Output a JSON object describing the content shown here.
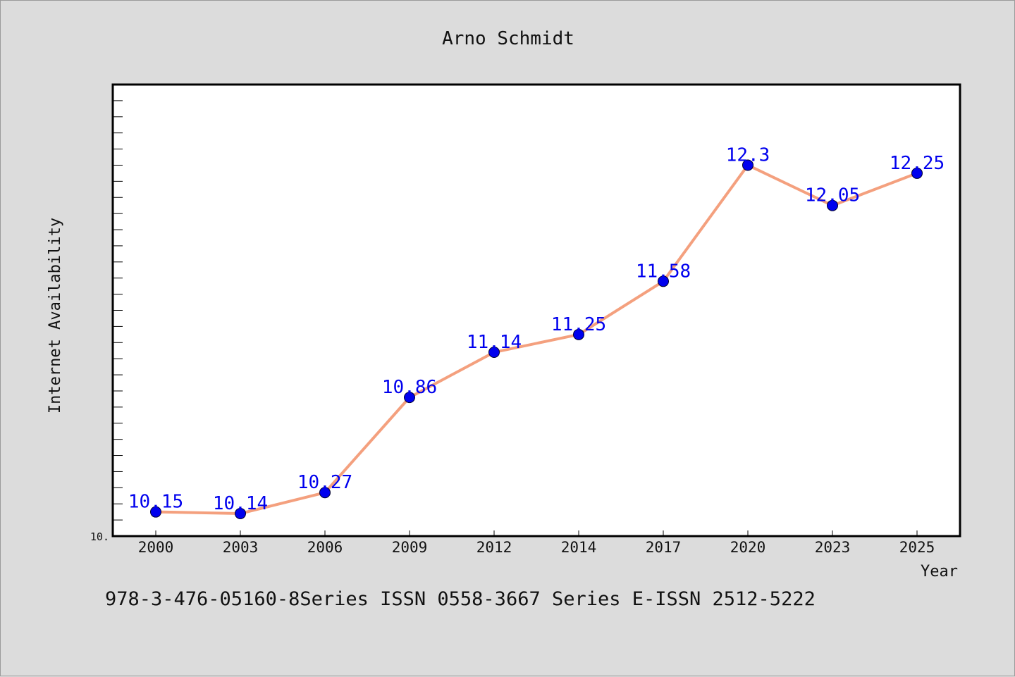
{
  "chart_data": {
    "type": "line",
    "title": "Arno Schmidt",
    "xlabel": "Year",
    "ylabel": "Internet Availability",
    "categories": [
      "2000",
      "2003",
      "2006",
      "2009",
      "2012",
      "2014",
      "2017",
      "2020",
      "2023",
      "2025"
    ],
    "series": [
      {
        "values": [
          10.15,
          10.14,
          10.27,
          10.86,
          11.14,
          11.25,
          11.58,
          12.3,
          12.05,
          12.25
        ]
      }
    ],
    "data_labels": [
      "10.15",
      "10.14",
      "10.27",
      "10.86",
      "11.14",
      "11.25",
      "11.58",
      "12.3",
      "12.05",
      "12.25"
    ],
    "y_tick_labels": [
      "10."
    ],
    "ylim": [
      10.0,
      12.8
    ],
    "grid": false,
    "colors": {
      "line": "#f4a07e",
      "marker": "#0000ee",
      "label": "#0000ee",
      "background": "#dcdcdc",
      "plot_bg": "#ffffff"
    }
  },
  "footer": "978-3-476-05160-8Series ISSN 0558-3667 Series E-ISSN 2512-5222"
}
